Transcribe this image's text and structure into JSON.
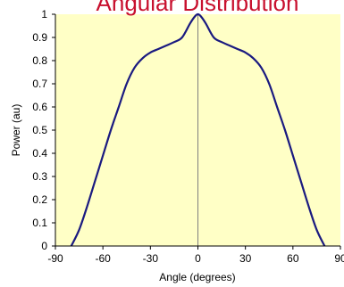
{
  "chart_data": {
    "type": "line",
    "title": "Angular Distribution",
    "xlabel": "Angle (degrees)",
    "ylabel": "Power (au)",
    "xlim": [
      -90,
      90
    ],
    "ylim": [
      0,
      1
    ],
    "xticks": [
      -90,
      -60,
      -30,
      0,
      30,
      60,
      90
    ],
    "xtick_labels": [
      "-90",
      "-60",
      "-30",
      "0",
      "30",
      "60",
      "90"
    ],
    "yticks": [
      0,
      0.1,
      0.2,
      0.3,
      0.4,
      0.5,
      0.6,
      0.7,
      0.8,
      0.9,
      1
    ],
    "ytick_labels": [
      "0",
      "0.1",
      "0.2",
      "0.3",
      "0.4",
      "0.5",
      "0.6",
      "0.7",
      "0.8",
      "0.9",
      "1"
    ],
    "grid": false,
    "legend": "none",
    "series": [
      {
        "x": [
          -80,
          -75,
          -70,
          -65,
          -60,
          -55,
          -50,
          -45,
          -40,
          -35,
          -30,
          -25,
          -20,
          -15,
          -10,
          -5,
          -2,
          0,
          2,
          5,
          10,
          15,
          20,
          25,
          30,
          35,
          40,
          45,
          50,
          55,
          60,
          65,
          70,
          75,
          80
        ],
        "y": [
          0,
          0.07,
          0.17,
          0.28,
          0.39,
          0.5,
          0.6,
          0.7,
          0.77,
          0.81,
          0.835,
          0.85,
          0.865,
          0.88,
          0.9,
          0.96,
          0.99,
          1,
          0.99,
          0.96,
          0.9,
          0.88,
          0.865,
          0.85,
          0.835,
          0.81,
          0.77,
          0.7,
          0.6,
          0.5,
          0.39,
          0.28,
          0.17,
          0.07,
          0
        ]
      }
    ],
    "colors": {
      "plot_background": "#ffffc6",
      "line": "#1a1a80",
      "zero_line": "#7f7f7f",
      "title": "#c8102e"
    }
  }
}
